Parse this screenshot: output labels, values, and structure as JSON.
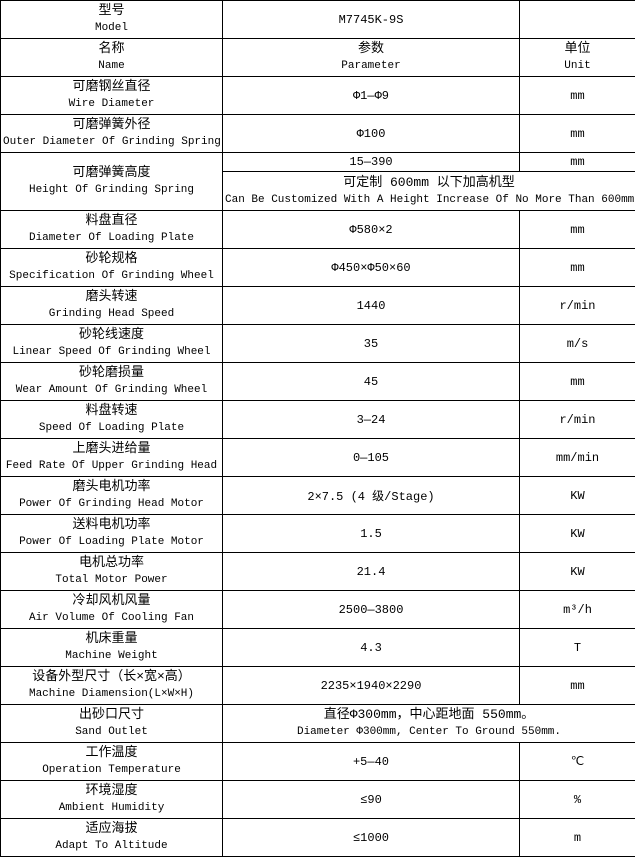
{
  "header": {
    "model": {
      "zh": "型号",
      "en": "Model",
      "value": "M7745K-9S",
      "unit": ""
    },
    "columns": {
      "name": {
        "zh": "名称",
        "en": "Name"
      },
      "param": {
        "zh": "参数",
        "en": "Parameter"
      },
      "unit": {
        "zh": "单位",
        "en": "Unit"
      }
    }
  },
  "rows": [
    {
      "type": "std",
      "name_zh": "可磨钢丝直径",
      "name_en": "Wire Diameter",
      "param": "Φ1—Φ9",
      "unit": "mm"
    },
    {
      "type": "std",
      "name_zh": "可磨弹簧外径",
      "name_en": "Outer Diameter Of Grinding Spring",
      "param": "Φ100",
      "unit": "mm"
    },
    {
      "type": "split",
      "name_zh": "可磨弹簧高度",
      "name_en": "Height Of Grinding Spring",
      "sub1": {
        "param": "15—390",
        "unit": "mm"
      },
      "sub2": {
        "zh": "可定制 600mm 以下加高机型",
        "en": "Can Be Customized With A Height Increase Of No More Than 600mm."
      }
    },
    {
      "type": "std",
      "name_zh": "料盘直径",
      "name_en": "Diameter Of Loading Plate",
      "param": "Φ580×2",
      "unit": "mm"
    },
    {
      "type": "std",
      "name_zh": "砂轮规格",
      "name_en": "Specification Of Grinding Wheel",
      "param": "Φ450×Φ50×60",
      "unit": "mm"
    },
    {
      "type": "std",
      "name_zh": "磨头转速",
      "name_en": "Grinding Head Speed",
      "param": "1440",
      "unit": "r/min"
    },
    {
      "type": "std",
      "name_zh": "砂轮线速度",
      "name_en": "Linear Speed Of Grinding Wheel",
      "param": "35",
      "unit": "m/s"
    },
    {
      "type": "std",
      "name_zh": "砂轮磨损量",
      "name_en": "Wear Amount Of Grinding Wheel",
      "param": "45",
      "unit": "mm"
    },
    {
      "type": "std",
      "name_zh": "料盘转速",
      "name_en": "Speed Of Loading Plate",
      "param": "3—24",
      "unit": "r/min"
    },
    {
      "type": "std",
      "name_zh": "上磨头进给量",
      "name_en": "Feed Rate Of Upper Grinding Head",
      "param": "0—105",
      "unit": "mm/min"
    },
    {
      "type": "std",
      "name_zh": "磨头电机功率",
      "name_en": "Power Of Grinding Head Motor",
      "param": "2×7.5 (4 级/Stage)",
      "unit": "KW"
    },
    {
      "type": "std",
      "name_zh": "送料电机功率",
      "name_en": "Power Of Loading Plate Motor",
      "param": "1.5",
      "unit": "KW"
    },
    {
      "type": "std",
      "name_zh": "电机总功率",
      "name_en": "Total Motor Power",
      "param": "21.4",
      "unit": "KW"
    },
    {
      "type": "std",
      "name_zh": "冷却风机风量",
      "name_en": "Air Volume Of Cooling Fan",
      "param": "2500—3800",
      "unit": "m³/h"
    },
    {
      "type": "std",
      "name_zh": "机床重量",
      "name_en": "Machine Weight",
      "param": "4.3",
      "unit": "T"
    },
    {
      "type": "std",
      "name_zh": "设备外型尺寸（长×宽×高）",
      "name_en": "Machine Diamension(L×W×H)",
      "param": "2235×1940×2290",
      "unit": "mm"
    },
    {
      "type": "merged",
      "name_zh": "出砂口尺寸",
      "name_en": "Sand Outlet",
      "param_zh": "直径Φ300mm，中心距地面 550mm。",
      "param_en": "Diameter Φ300mm, Center To Ground 550mm."
    },
    {
      "type": "std",
      "name_zh": "工作温度",
      "name_en": "Operation Temperature",
      "param": "+5—40",
      "unit": "℃"
    },
    {
      "type": "std",
      "name_zh": "环境湿度",
      "name_en": "Ambient Humidity",
      "param": "≤90",
      "unit": "%"
    },
    {
      "type": "std",
      "name_zh": "适应海拔",
      "name_en": "Adapt To Altitude",
      "param": "≤1000",
      "unit": "m"
    }
  ]
}
